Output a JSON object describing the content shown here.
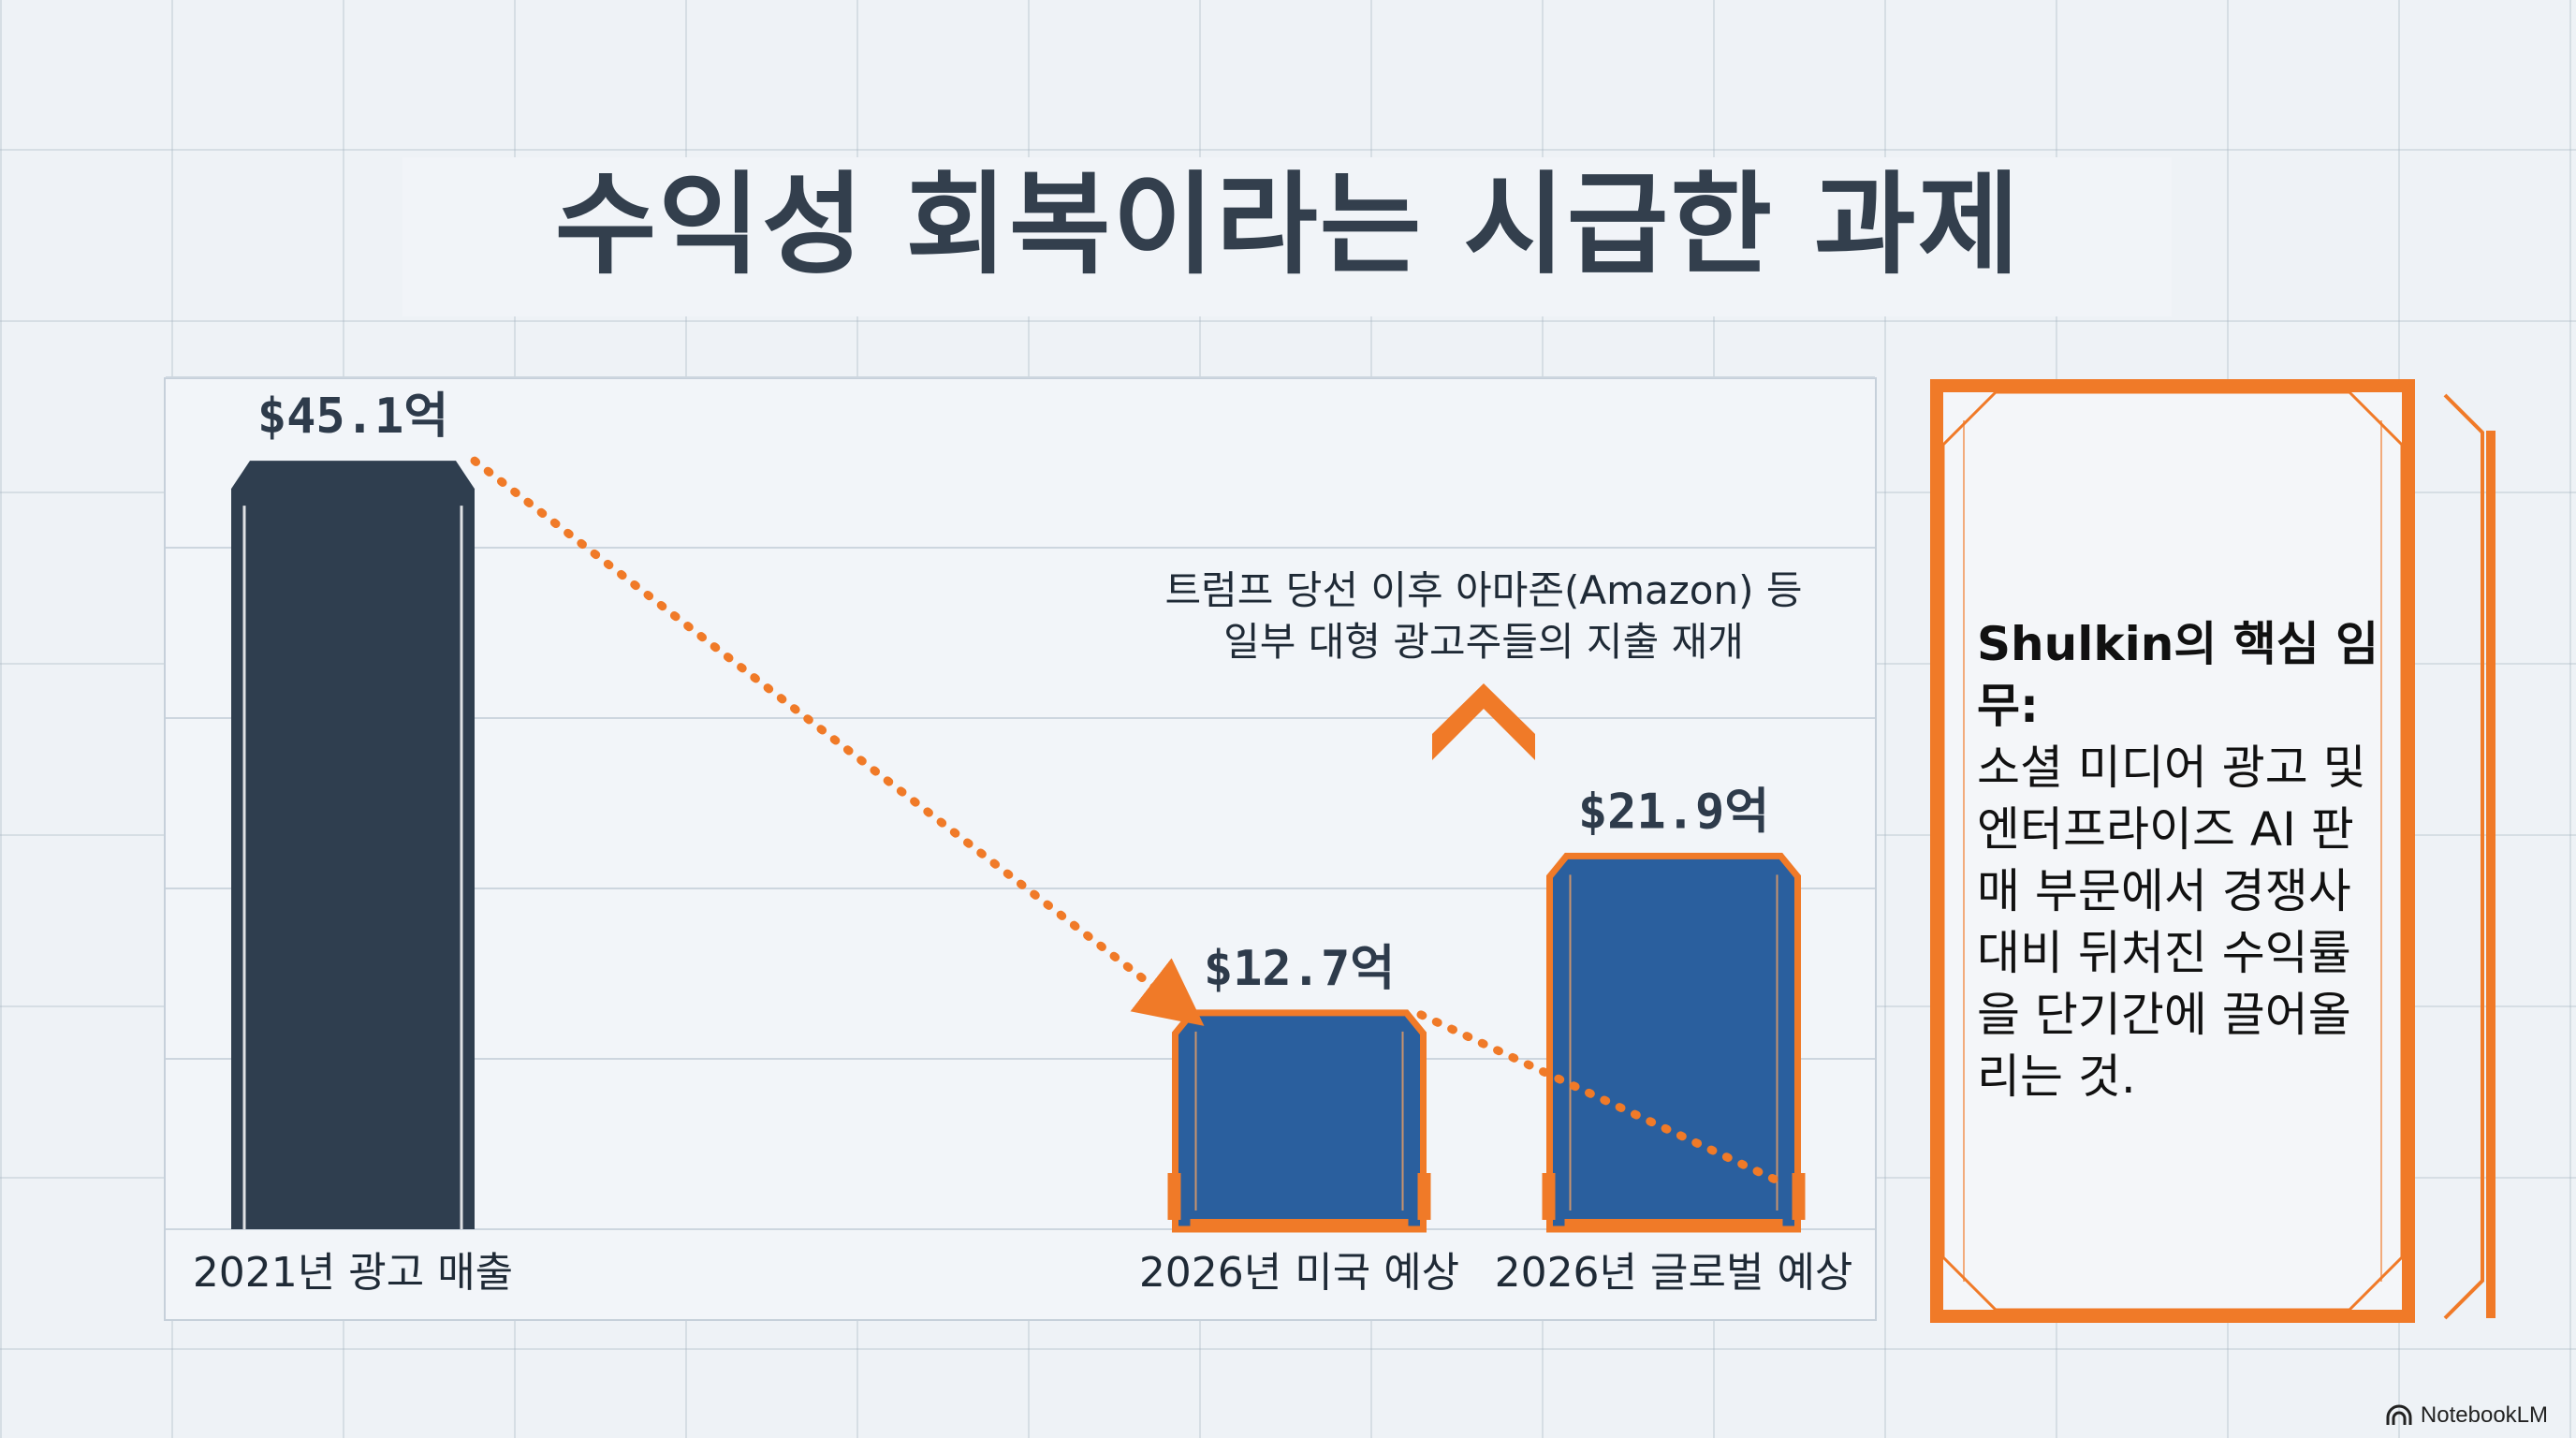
{
  "title": "수익성 회복이라는 시급한 과제",
  "chart_data": {
    "type": "bar",
    "categories": [
      "2021년 광고 매출",
      "2026년 미국 예상",
      "2026년 글로벌 예상"
    ],
    "values": [
      45.1,
      12.7,
      21.9
    ],
    "value_labels": [
      "$45.1억",
      "$12.7억",
      "$21.9억"
    ],
    "ylim": [
      0,
      50
    ],
    "grid": true,
    "colors": {
      "bar_2021": "#2f3e4f",
      "bar_forecast": "#2a5f9e",
      "accent": "#f07a28"
    }
  },
  "annotation": {
    "line1": "트럼프 당선 이후 아마존(Amazon) 등",
    "line2": "일부 대형 광고주들의 지출 재개",
    "icon": "chevron-up-icon"
  },
  "side_card": {
    "heading": "Shulkin의 핵심 임무:",
    "body": "소셜 미디어 광고 및 엔터프라이즈 AI 판매 부문에서 경쟁사 대비 뒤처진 수익률을 단기간에 끌어올리는 것."
  },
  "branding": {
    "label": "NotebookLM"
  }
}
